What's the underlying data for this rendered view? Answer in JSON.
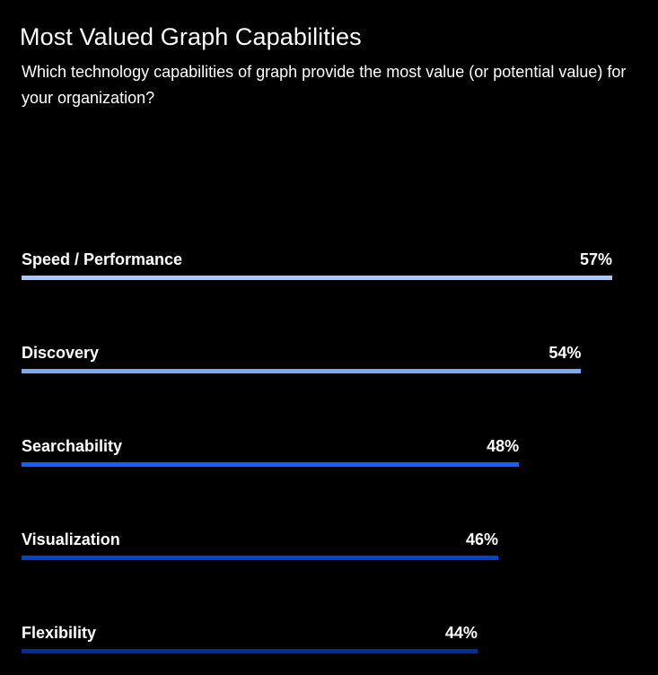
{
  "chart_data": {
    "type": "bar",
    "orientation": "horizontal",
    "title": "Most Valued Graph Capabilities",
    "subtitle": "Which technology capabilities of graph provide the most value (or potential value) for your organization?",
    "categories": [
      "Speed / Performance",
      "Discovery",
      "Searchability",
      "Visualization",
      "Flexibility"
    ],
    "values": [
      57,
      54,
      48,
      46,
      44
    ],
    "value_labels": [
      "57%",
      "54%",
      "48%",
      "46%",
      "44%"
    ],
    "bar_colors": [
      "#a6c8ff",
      "#78a9ff",
      "#0f62fe",
      "#0043ce",
      "#002d9c"
    ],
    "value_unit": "%",
    "grid": false,
    "legend": "none"
  },
  "colors": {
    "background": "#000000",
    "text": "#ffffff"
  }
}
